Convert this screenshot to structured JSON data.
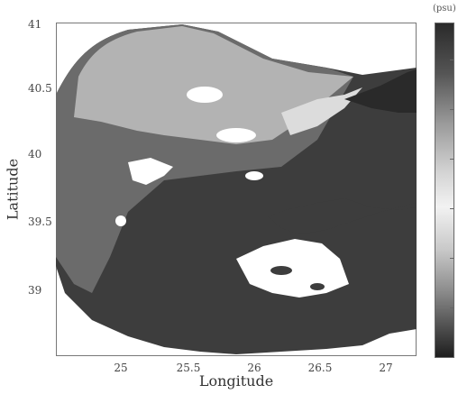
{
  "chart_data": {
    "type": "heatmap",
    "xlabel": "Longitude",
    "ylabel": "Latitude",
    "colorbar_label": "(psu)",
    "xticks": [
      "25",
      "25.5",
      "26",
      "26.5",
      "27"
    ],
    "yticks": [
      "41",
      "40.5",
      "40",
      "39.5",
      "39"
    ],
    "xlim": [
      24.5,
      27.2
    ],
    "ylim": [
      38.5,
      41
    ],
    "grid": false,
    "colormap": "grayscale",
    "colors": {
      "dark_water": "#3f3f3f",
      "mid_water": "#6e6e6e",
      "light_water": "#b3b3b3",
      "land": "#ffffff"
    }
  }
}
